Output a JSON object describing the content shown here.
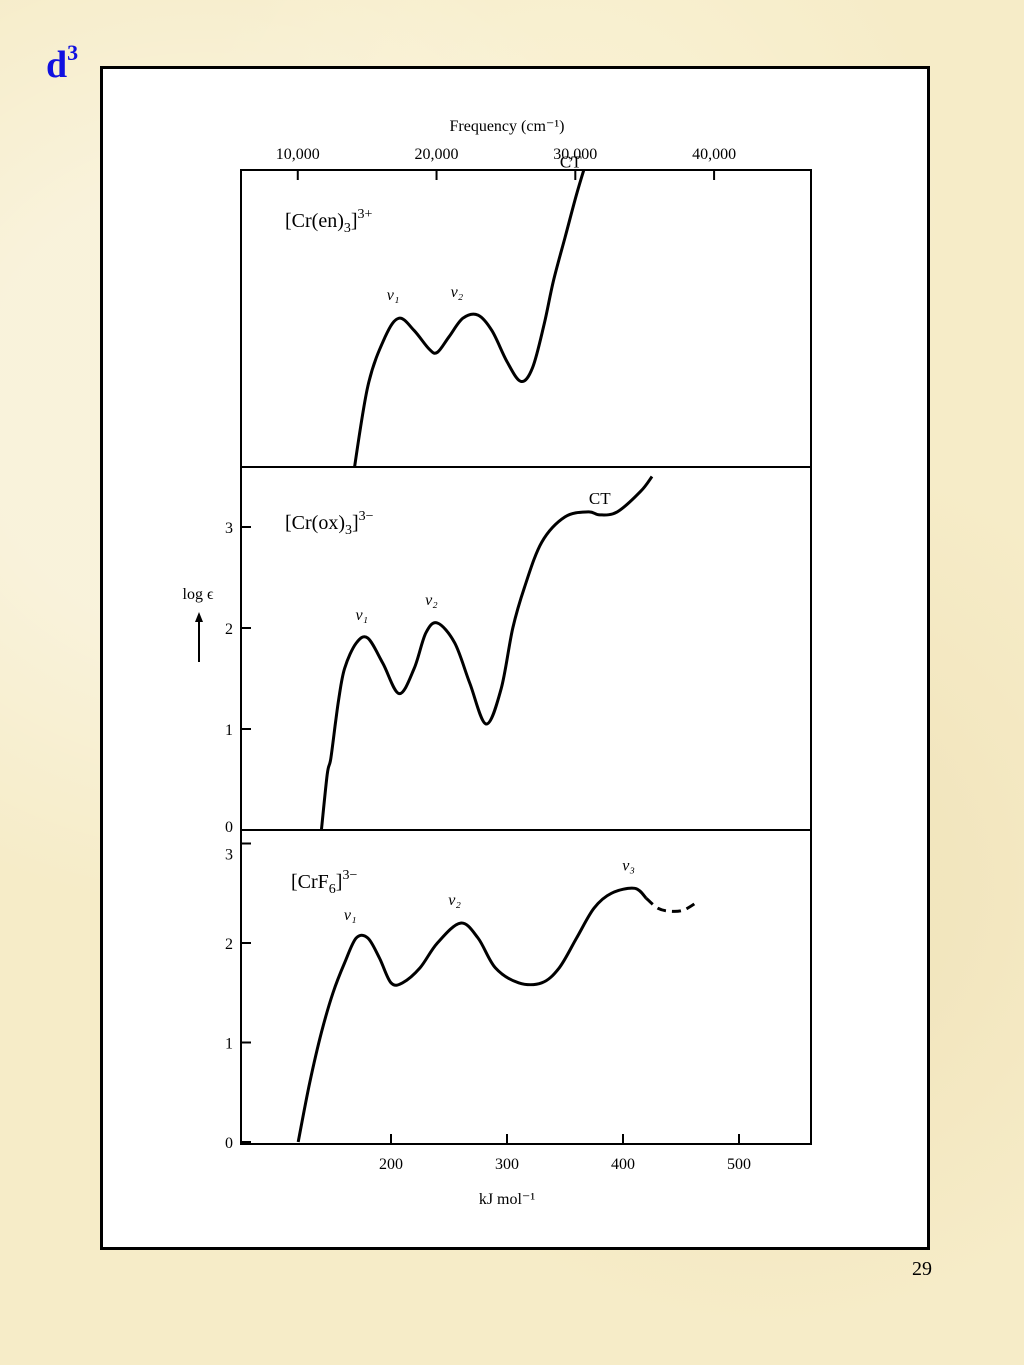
{
  "slide": {
    "title_base": "d",
    "title_sup": "3",
    "page_number": "29"
  },
  "chart_data": [
    {
      "type": "line",
      "panel": "top",
      "title": "[Cr(en)₃]³⁺",
      "x": [
        167,
        180,
        195,
        207,
        220,
        233,
        240,
        250,
        262,
        275,
        287,
        300,
        312,
        322,
        332,
        340,
        350,
        360,
        368
      ],
      "y": [
        -0.6,
        0.9,
        1.7,
        2.0,
        1.8,
        1.5,
        1.45,
        1.7,
        2.0,
        2.05,
        1.8,
        1.3,
        0.98,
        1.2,
        1.9,
        2.6,
        3.3,
        4.0,
        4.5
      ],
      "peaks": [
        {
          "label": "ν₁",
          "x": 207,
          "y": 2.0
        },
        {
          "label": "ν₂",
          "x": 262,
          "y": 2.05
        },
        {
          "label": "CT",
          "x": 355,
          "y": 4.3
        }
      ]
    },
    {
      "type": "line",
      "panel": "middle",
      "title": "[Cr(ox)₃]³⁻",
      "yticks": [
        0,
        1,
        2,
        3
      ],
      "ylim": [
        0,
        3.0
      ],
      "x": [
        140,
        145,
        148,
        152,
        155,
        160,
        170,
        180,
        193,
        207,
        220,
        230,
        240,
        255,
        268,
        282,
        295,
        305,
        315,
        330,
        350,
        370,
        380,
        395,
        415,
        425
      ],
      "y": [
        0,
        0.55,
        0.7,
        1.05,
        1.3,
        1.6,
        1.85,
        1.9,
        1.65,
        1.35,
        1.6,
        1.95,
        2.05,
        1.85,
        1.45,
        1.05,
        1.4,
        2.0,
        2.4,
        2.85,
        3.1,
        3.15,
        3.12,
        3.15,
        3.35,
        3.5
      ],
      "peaks": [
        {
          "label": "ν₁",
          "x": 180,
          "y": 1.9
        },
        {
          "label": "ν₂",
          "x": 240,
          "y": 2.05
        },
        {
          "label": "CT",
          "x": 380,
          "y": 3.15
        }
      ]
    },
    {
      "type": "line",
      "panel": "bottom",
      "title": "[CrF₆]³⁻",
      "xlabel": "kJ mol⁻¹",
      "xticks": [
        200,
        300,
        400,
        500
      ],
      "yticks": [
        0,
        1,
        2,
        3
      ],
      "ylim": [
        0,
        3.0
      ],
      "x": [
        120,
        130,
        140,
        150,
        160,
        170,
        180,
        190,
        200,
        210,
        225,
        240,
        260,
        275,
        290,
        310,
        330,
        345,
        360,
        375,
        390,
        410,
        420
      ],
      "y": [
        0,
        0.6,
        1.1,
        1.5,
        1.8,
        2.05,
        2.05,
        1.85,
        1.6,
        1.6,
        1.75,
        2.0,
        2.2,
        2.05,
        1.75,
        1.6,
        1.6,
        1.75,
        2.05,
        2.35,
        2.5,
        2.55,
        2.45
      ],
      "dashed_x": [
        420,
        430,
        440,
        452,
        465
      ],
      "dashed_y": [
        2.45,
        2.35,
        2.32,
        2.33,
        2.42
      ],
      "peaks": [
        {
          "label": "ν₁",
          "x": 170,
          "y": 2.05
        },
        {
          "label": "ν₂",
          "x": 260,
          "y": 2.2
        },
        {
          "label": "ν₃",
          "x": 410,
          "y": 2.55
        }
      ]
    }
  ],
  "axes": {
    "top_label": "Frequency (cm⁻¹)",
    "top_ticks": [
      "10,000",
      "20,000",
      "30,000",
      "40,000"
    ],
    "top_tick_values": [
      10000,
      20000,
      30000,
      40000
    ],
    "ylabel": "log ϵ",
    "bottom_label": "kJ mol⁻¹",
    "bottom_ticks": [
      "200",
      "300",
      "400",
      "500"
    ],
    "bottom_tick_values": [
      200,
      300,
      400,
      500
    ],
    "left_ticks_mid": [
      "0",
      "1",
      "2",
      "3"
    ],
    "left_ticks_bottom": [
      "0",
      "1",
      "2",
      "3"
    ]
  }
}
